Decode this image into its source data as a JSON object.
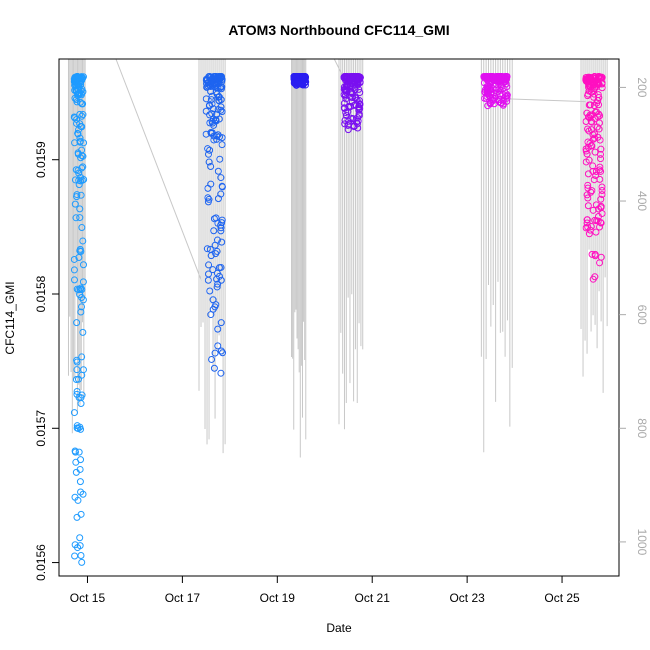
{
  "chart_data": {
    "type": "scatter",
    "title": "ATOM3 Northbound CFC114_GMI",
    "xlabel": "Date",
    "ylabel": "CFC114_GMI",
    "x_ticks": [
      "Oct 15",
      "Oct 17",
      "Oct 19",
      "Oct 21",
      "Oct 23",
      "Oct 25"
    ],
    "x_tick_days": [
      15,
      17,
      19,
      21,
      23,
      25
    ],
    "xlim_days": [
      14.4,
      26.2
    ],
    "y_ticks": [
      "0.0156",
      "0.0157",
      "0.0158",
      "0.0159"
    ],
    "y_tick_values": [
      0.0156,
      0.0157,
      0.0158,
      0.0159
    ],
    "ylim": [
      0.01559,
      0.015975
    ],
    "right_axis": {
      "ticks": [
        "200",
        "400",
        "600",
        "800",
        "1000"
      ],
      "tick_values": [
        200,
        400,
        600,
        800,
        1000
      ],
      "lim": [
        1060,
        150
      ],
      "color": "#aaaaaa"
    },
    "grid": false,
    "legend": "none",
    "series": [
      {
        "color": "#1e9bff",
        "x_range": [
          14.72,
          14.92
        ],
        "y_top": 0.015962,
        "y_bottom": 0.015598
      },
      {
        "color": "#1e64f0",
        "x_range": [
          17.5,
          17.85
        ],
        "y_top": 0.015962,
        "y_bottom": 0.01574
      },
      {
        "color": "#2a1ef0",
        "x_range": [
          19.35,
          19.6
        ],
        "y_top": 0.015962,
        "y_bottom": 0.015955
      },
      {
        "color": "#7a10f0",
        "x_range": [
          20.4,
          20.75
        ],
        "y_top": 0.015962,
        "y_bottom": 0.015922
      },
      {
        "color": "#e010f0",
        "x_range": [
          23.35,
          23.85
        ],
        "y_top": 0.015962,
        "y_bottom": 0.01594
      },
      {
        "color": "#ff10c0",
        "x_range": [
          25.5,
          25.85
        ],
        "y_top": 0.015962,
        "y_bottom": 0.01581
      }
    ],
    "altitude_trace": {
      "color": "#c8c8c8",
      "flights": [
        {
          "x_range": [
            14.6,
            14.95
          ],
          "min_pressure": 150,
          "max_pressure": 810
        },
        {
          "x_range": [
            17.35,
            17.9
          ],
          "min_pressure": 150,
          "max_pressure": 870
        },
        {
          "x_range": [
            19.3,
            19.6
          ],
          "min_pressure": 150,
          "max_pressure": 860
        },
        {
          "x_range": [
            20.3,
            20.8
          ],
          "min_pressure": 150,
          "max_pressure": 850
        },
        {
          "x_range": [
            23.3,
            23.95
          ],
          "min_pressure": 150,
          "max_pressure": 860
        },
        {
          "x_range": [
            25.4,
            25.95
          ],
          "min_pressure": 150,
          "max_pressure": 750
        }
      ],
      "connectors": [
        {
          "from": [
            15.6,
            150
          ],
          "to": [
            17.4,
            540
          ]
        },
        {
          "from": [
            20.2,
            150
          ],
          "to": [
            20.5,
            200
          ]
        },
        {
          "from": [
            23.8,
            220
          ],
          "to": [
            25.5,
            225
          ]
        }
      ]
    }
  }
}
